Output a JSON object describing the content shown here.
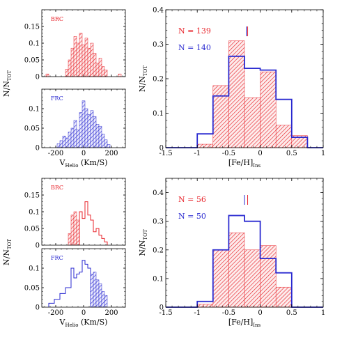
{
  "colors": {
    "red": "#e8242b",
    "blue": "#2a2ad0",
    "hatch_red": "#f07a7e",
    "hatch_blue": "#6666e0",
    "axis": "#000000"
  },
  "chart_data": [
    {
      "id": "vel-brc-top",
      "type": "histogram",
      "panel": "top-left-upper",
      "label": "BRC",
      "label_color": "red",
      "ylabel": "N/N",
      "ylabel_sub": "TOT",
      "xlim": [
        -300,
        300
      ],
      "ylim": [
        0,
        0.2
      ],
      "yticks": [
        0,
        0.05,
        0.1,
        0.15
      ],
      "ytick_labels": [
        "0",
        "0.05",
        "0.1",
        "0.15"
      ],
      "xticks": [
        -200,
        0,
        200
      ],
      "xtick_labels": [],
      "series": [
        {
          "style": "hatched",
          "color": "red",
          "bins": [
            {
              "x0": -270,
              "x1": -250,
              "y": 0.008
            },
            {
              "x0": -130,
              "x1": -110,
              "y": 0.022
            },
            {
              "x0": -110,
              "x1": -90,
              "y": 0.05
            },
            {
              "x0": -90,
              "x1": -70,
              "y": 0.085
            },
            {
              "x0": -70,
              "x1": -50,
              "y": 0.12
            },
            {
              "x0": -50,
              "x1": -30,
              "y": 0.1
            },
            {
              "x0": -30,
              "x1": -10,
              "y": 0.13
            },
            {
              "x0": -10,
              "x1": 10,
              "y": 0.095
            },
            {
              "x0": 10,
              "x1": 30,
              "y": 0.115
            },
            {
              "x0": 30,
              "x1": 50,
              "y": 0.085
            },
            {
              "x0": 50,
              "x1": 70,
              "y": 0.1
            },
            {
              "x0": 70,
              "x1": 90,
              "y": 0.07
            },
            {
              "x0": 90,
              "x1": 110,
              "y": 0.04
            },
            {
              "x0": 110,
              "x1": 130,
              "y": 0.055
            },
            {
              "x0": 130,
              "x1": 150,
              "y": 0.03
            },
            {
              "x0": 150,
              "x1": 170,
              "y": 0.02
            },
            {
              "x0": 250,
              "x1": 270,
              "y": 0.008
            }
          ]
        }
      ]
    },
    {
      "id": "vel-frc-top",
      "type": "histogram",
      "panel": "top-left-lower",
      "label": "FRC",
      "label_color": "blue",
      "xlim": [
        -300,
        300
      ],
      "ylim": [
        0,
        0.15
      ],
      "yticks": [
        0,
        0.05,
        0.1
      ],
      "ytick_labels": [
        "0",
        "0.05",
        "0.1"
      ],
      "xticks": [
        -200,
        0,
        200
      ],
      "xtick_labels": [
        "-200",
        "0",
        "200"
      ],
      "xlabel": "V",
      "xlabel_sub": "Helio",
      "xlabel_tail": " (Km/S)",
      "series": [
        {
          "style": "hatched",
          "color": "blue",
          "bins": [
            {
              "x0": -190,
              "x1": -170,
              "y": 0.01
            },
            {
              "x0": -170,
              "x1": -150,
              "y": 0.018
            },
            {
              "x0": -150,
              "x1": -130,
              "y": 0.03
            },
            {
              "x0": -130,
              "x1": -110,
              "y": 0.025
            },
            {
              "x0": -110,
              "x1": -90,
              "y": 0.04
            },
            {
              "x0": -90,
              "x1": -70,
              "y": 0.05
            },
            {
              "x0": -70,
              "x1": -50,
              "y": 0.07
            },
            {
              "x0": -50,
              "x1": -30,
              "y": 0.045
            },
            {
              "x0": -30,
              "x1": -10,
              "y": 0.09
            },
            {
              "x0": -10,
              "x1": 10,
              "y": 0.12
            },
            {
              "x0": 10,
              "x1": 30,
              "y": 0.1
            },
            {
              "x0": 30,
              "x1": 50,
              "y": 0.085
            },
            {
              "x0": 50,
              "x1": 70,
              "y": 0.095
            },
            {
              "x0": 70,
              "x1": 90,
              "y": 0.08
            },
            {
              "x0": 90,
              "x1": 110,
              "y": 0.06
            },
            {
              "x0": 110,
              "x1": 130,
              "y": 0.055
            },
            {
              "x0": 130,
              "x1": 150,
              "y": 0.035
            },
            {
              "x0": 150,
              "x1": 170,
              "y": 0.02
            },
            {
              "x0": 170,
              "x1": 190,
              "y": 0.008
            }
          ]
        }
      ]
    },
    {
      "id": "feh-top",
      "type": "histogram",
      "panel": "top-right",
      "ylabel": "N/N",
      "ylabel_sub": "TOT",
      "xlabel": "[Fe/H]",
      "xlabel_sub": "Ins",
      "xlim": [
        -1.5,
        1
      ],
      "ylim": [
        0,
        0.4
      ],
      "xticks": [
        -1.5,
        -1,
        -0.5,
        0,
        0.5,
        1
      ],
      "xtick_labels": [
        "-1.5",
        "-1",
        "-0.5",
        "0",
        "0.5",
        "1"
      ],
      "yticks": [
        0,
        0.1,
        0.2,
        0.3,
        0.4
      ],
      "ytick_labels": [
        "0",
        "0.1",
        "0.2",
        "0.3",
        "0.4"
      ],
      "annotations": [
        {
          "text": "N = 139",
          "color": "red"
        },
        {
          "text": "N = 140",
          "color": "blue"
        }
      ],
      "mean_markers": [
        {
          "x": -0.2,
          "color": "red"
        },
        {
          "x": -0.22,
          "color": "blue"
        }
      ],
      "series": [
        {
          "style": "hatched",
          "color": "red",
          "bins": [
            {
              "x0": -1,
              "x1": -0.75,
              "y": 0.01
            },
            {
              "x0": -0.75,
              "x1": -0.5,
              "y": 0.18
            },
            {
              "x0": -0.5,
              "x1": -0.25,
              "y": 0.31
            },
            {
              "x0": -0.25,
              "x1": 0,
              "y": 0.145
            },
            {
              "x0": 0,
              "x1": 0.25,
              "y": 0.22
            },
            {
              "x0": 0.25,
              "x1": 0.5,
              "y": 0.065
            },
            {
              "x0": 0.5,
              "x1": 0.75,
              "y": 0.035
            }
          ]
        },
        {
          "style": "outline",
          "color": "blue",
          "bins": [
            {
              "x0": -1.5,
              "x1": -1,
              "y": 0
            },
            {
              "x0": -1,
              "x1": -0.75,
              "y": 0.04
            },
            {
              "x0": -0.75,
              "x1": -0.5,
              "y": 0.15
            },
            {
              "x0": -0.5,
              "x1": -0.25,
              "y": 0.265
            },
            {
              "x0": -0.25,
              "x1": 0,
              "y": 0.23
            },
            {
              "x0": 0,
              "x1": 0.25,
              "y": 0.225
            },
            {
              "x0": 0.25,
              "x1": 0.5,
              "y": 0.14
            },
            {
              "x0": 0.5,
              "x1": 0.75,
              "y": 0.03
            },
            {
              "x0": 0.75,
              "x1": 1,
              "y": 0
            }
          ]
        }
      ]
    },
    {
      "id": "vel-brc-bottom",
      "type": "histogram",
      "panel": "bottom-left-upper",
      "label": "BRC",
      "label_color": "red",
      "ylabel": "N/N",
      "ylabel_sub": "TOT",
      "xlim": [
        -300,
        300
      ],
      "ylim": [
        0,
        0.2
      ],
      "yticks": [
        0,
        0.05,
        0.1,
        0.15
      ],
      "ytick_labels": [
        "0",
        "0.05",
        "0.1",
        "0.15"
      ],
      "xticks": [
        -200,
        0,
        200
      ],
      "xtick_labels": [],
      "series": [
        {
          "style": "hatched",
          "color": "red",
          "bins": [
            {
              "x0": -110,
              "x1": -90,
              "y": 0.035
            },
            {
              "x0": -90,
              "x1": -70,
              "y": 0.09
            },
            {
              "x0": -70,
              "x1": -50,
              "y": 0.1
            },
            {
              "x0": -50,
              "x1": -30,
              "y": 0.075
            }
          ]
        },
        {
          "style": "outline",
          "color": "red",
          "bins": [
            {
              "x0": -30,
              "x1": -10,
              "y": 0.1
            },
            {
              "x0": -10,
              "x1": 10,
              "y": 0.08
            },
            {
              "x0": 10,
              "x1": 30,
              "y": 0.13
            },
            {
              "x0": 30,
              "x1": 50,
              "y": 0.09
            },
            {
              "x0": 50,
              "x1": 70,
              "y": 0.075
            },
            {
              "x0": 70,
              "x1": 90,
              "y": 0.04
            },
            {
              "x0": 90,
              "x1": 110,
              "y": 0.05
            },
            {
              "x0": 110,
              "x1": 130,
              "y": 0.03
            },
            {
              "x0": 130,
              "x1": 150,
              "y": 0.02
            },
            {
              "x0": 150,
              "x1": 170,
              "y": 0.01
            }
          ]
        }
      ]
    },
    {
      "id": "vel-frc-bottom",
      "type": "histogram",
      "panel": "bottom-left-lower",
      "label": "FRC",
      "label_color": "blue",
      "xlim": [
        -300,
        300
      ],
      "ylim": [
        0,
        0.15
      ],
      "yticks": [
        0,
        0.05,
        0.1
      ],
      "ytick_labels": [
        "0",
        "0.05",
        "0.1"
      ],
      "xticks": [
        -200,
        0,
        200
      ],
      "xtick_labels": [
        "-200",
        "0",
        "200"
      ],
      "xlabel": "V",
      "xlabel_sub": "Helio",
      "xlabel_tail": " (Km/S)",
      "series": [
        {
          "style": "outline",
          "color": "blue",
          "bins": [
            {
              "x0": -250,
              "x1": -210,
              "y": 0.01
            },
            {
              "x0": -210,
              "x1": -170,
              "y": 0.02
            },
            {
              "x0": -170,
              "x1": -130,
              "y": 0.035
            },
            {
              "x0": -130,
              "x1": -90,
              "y": 0.05
            },
            {
              "x0": -90,
              "x1": -70,
              "y": 0.1
            },
            {
              "x0": -70,
              "x1": -50,
              "y": 0.075
            },
            {
              "x0": -50,
              "x1": -30,
              "y": 0.085
            },
            {
              "x0": -30,
              "x1": -10,
              "y": 0.09
            },
            {
              "x0": -10,
              "x1": 10,
              "y": 0.12
            },
            {
              "x0": 10,
              "x1": 30,
              "y": 0.11
            },
            {
              "x0": 30,
              "x1": 50,
              "y": 0.1
            }
          ]
        },
        {
          "style": "hatched",
          "color": "blue",
          "bins": [
            {
              "x0": 50,
              "x1": 70,
              "y": 0.085
            },
            {
              "x0": 70,
              "x1": 90,
              "y": 0.09
            },
            {
              "x0": 90,
              "x1": 110,
              "y": 0.07
            },
            {
              "x0": 110,
              "x1": 130,
              "y": 0.06
            },
            {
              "x0": 130,
              "x1": 150,
              "y": 0.04
            },
            {
              "x0": 150,
              "x1": 170,
              "y": 0.03
            }
          ]
        }
      ]
    },
    {
      "id": "feh-bottom",
      "type": "histogram",
      "panel": "bottom-right",
      "ylabel": "N/N",
      "ylabel_sub": "TOT",
      "xlabel": "[Fe/H]",
      "xlabel_sub": "Ins",
      "xlim": [
        -1.5,
        1
      ],
      "ylim": [
        0,
        0.45
      ],
      "xticks": [
        -1.5,
        -1,
        -0.5,
        0,
        0.5,
        1
      ],
      "xtick_labels": [
        "-1.5",
        "-1",
        "-0.5",
        "0",
        "0.5",
        "1"
      ],
      "yticks": [
        0,
        0.1,
        0.2,
        0.3,
        0.4
      ],
      "ytick_labels": [
        "0",
        "0.1",
        "0.2",
        "0.3",
        "0.4"
      ],
      "annotations": [
        {
          "text": "N = 56",
          "color": "red"
        },
        {
          "text": "N = 50",
          "color": "blue"
        }
      ],
      "mean_markers": [
        {
          "x": -0.2,
          "color": "red"
        },
        {
          "x": -0.25,
          "color": "blue"
        }
      ],
      "series": [
        {
          "style": "hatched",
          "color": "red",
          "bins": [
            {
              "x0": -1,
              "x1": -0.75,
              "y": 0.01
            },
            {
              "x0": -0.75,
              "x1": -0.5,
              "y": 0.2
            },
            {
              "x0": -0.5,
              "x1": -0.25,
              "y": 0.26
            },
            {
              "x0": -0.25,
              "x1": 0,
              "y": 0.2
            },
            {
              "x0": 0,
              "x1": 0.25,
              "y": 0.215
            },
            {
              "x0": 0.25,
              "x1": 0.5,
              "y": 0.07
            }
          ]
        },
        {
          "style": "outline",
          "color": "blue",
          "bins": [
            {
              "x0": -1.5,
              "x1": -1,
              "y": 0
            },
            {
              "x0": -1,
              "x1": -0.75,
              "y": 0.02
            },
            {
              "x0": -0.75,
              "x1": -0.5,
              "y": 0.2
            },
            {
              "x0": -0.5,
              "x1": -0.25,
              "y": 0.32
            },
            {
              "x0": -0.25,
              "x1": 0,
              "y": 0.3
            },
            {
              "x0": 0,
              "x1": 0.25,
              "y": 0.17
            },
            {
              "x0": 0.25,
              "x1": 0.5,
              "y": 0.12
            },
            {
              "x0": 0.5,
              "x1": 1,
              "y": 0
            }
          ]
        }
      ]
    }
  ]
}
